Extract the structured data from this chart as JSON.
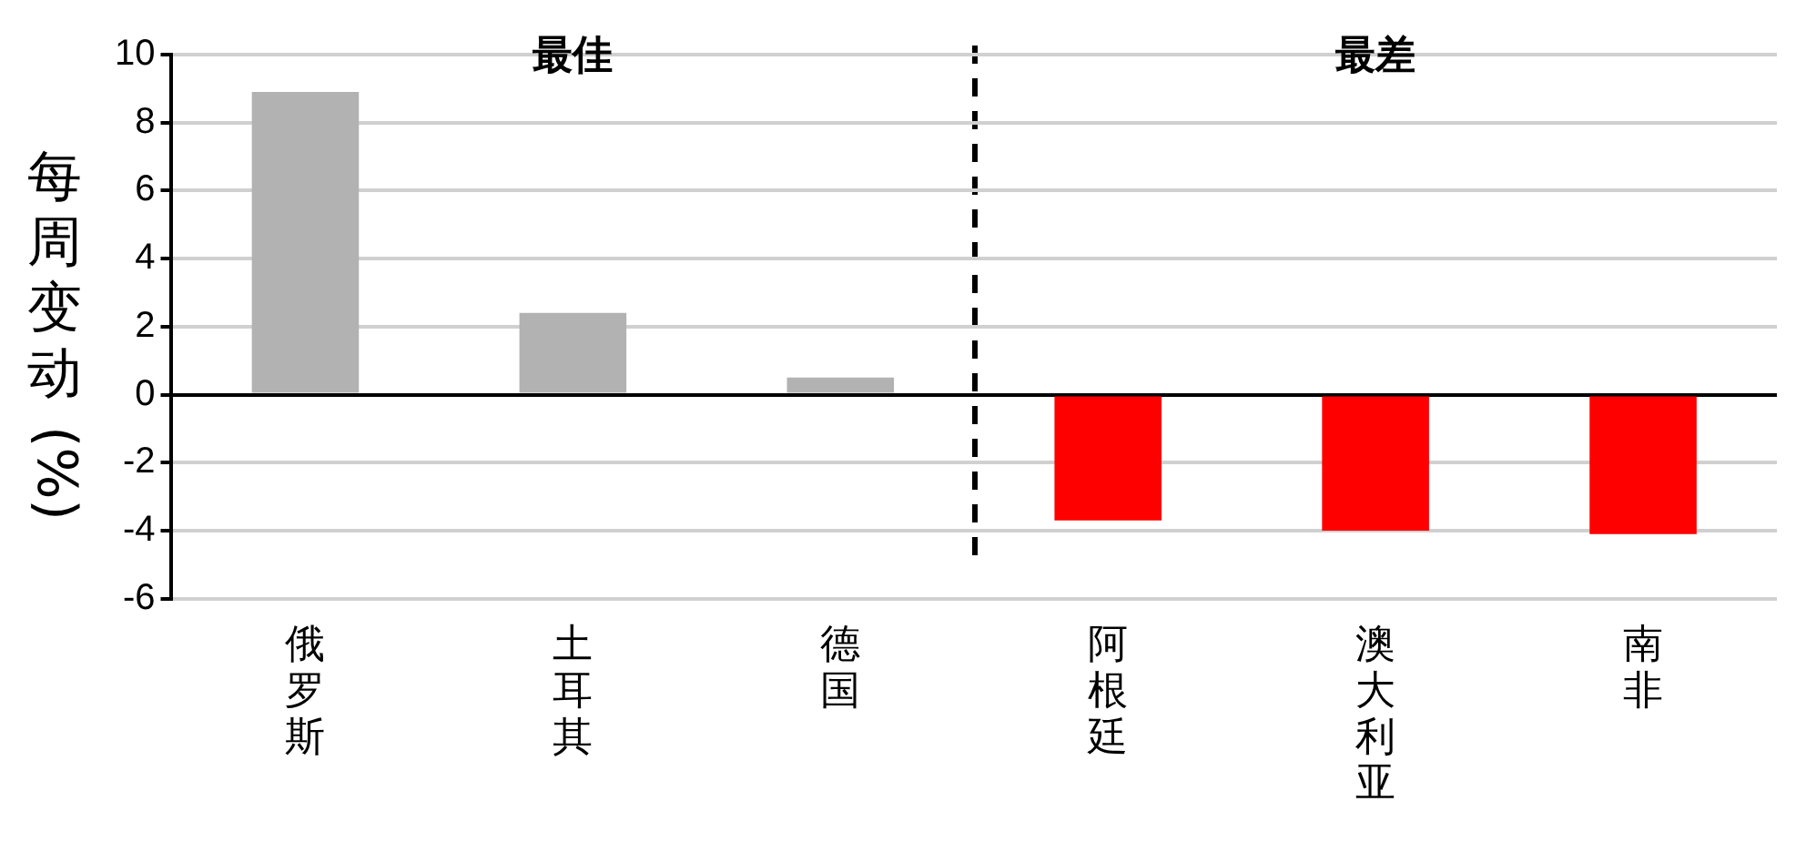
{
  "chart_data": {
    "type": "bar",
    "ylabel": "每周变动 (%)",
    "categories": [
      "俄罗斯",
      "土耳其",
      "德国",
      "阿根廷",
      "澳大利亚",
      "南非"
    ],
    "values": [
      8.9,
      2.4,
      0.5,
      -3.7,
      -4.0,
      -4.1
    ],
    "colors": [
      "#b2b2b2",
      "#b2b2b2",
      "#b2b2b2",
      "#ff0000",
      "#ff0000",
      "#ff0000"
    ],
    "ylim": [
      -6,
      10
    ],
    "yticks": [
      -6,
      -4,
      -2,
      0,
      2,
      4,
      6,
      8,
      10
    ],
    "grid": "y",
    "annotations": [
      "最佳",
      "最差"
    ]
  }
}
